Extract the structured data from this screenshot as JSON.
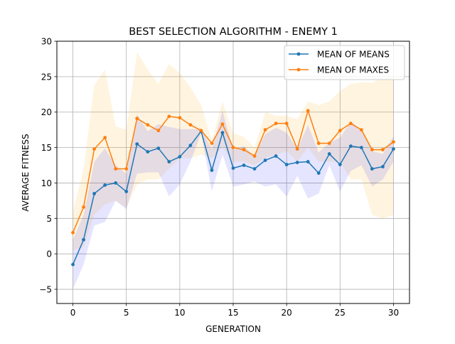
{
  "chart_data": {
    "type": "line",
    "title": "BEST SELECTION ALGORITHM - ENEMY 1",
    "xlabel": "GENERATION",
    "ylabel": "AVERAGE FITNESS",
    "xlim": [
      -1.5,
      31.5
    ],
    "ylim": [
      -7,
      30
    ],
    "xticks": [
      0,
      5,
      10,
      15,
      20,
      25,
      30
    ],
    "yticks": [
      -5,
      0,
      5,
      10,
      15,
      20,
      25,
      30
    ],
    "ytick_labels": [
      "−5",
      "0",
      "5",
      "10",
      "15",
      "20",
      "25",
      "30"
    ],
    "grid": true,
    "legend_position": "top-right",
    "x": [
      0,
      1,
      2,
      3,
      4,
      5,
      6,
      7,
      8,
      9,
      10,
      11,
      12,
      13,
      14,
      15,
      16,
      17,
      18,
      19,
      20,
      21,
      22,
      23,
      24,
      25,
      26,
      27,
      28,
      29,
      30
    ],
    "series": [
      {
        "name": "MEAN OF MEANS",
        "color": "#1f77b4",
        "band_color": "#0000ff",
        "values": [
          -1.5,
          2.0,
          8.5,
          9.7,
          10.0,
          8.8,
          15.5,
          14.4,
          14.9,
          13.0,
          13.7,
          15.3,
          17.3,
          11.8,
          17.1,
          12.1,
          12.5,
          12.0,
          13.2,
          13.8,
          12.6,
          12.9,
          13.0,
          11.4,
          14.1,
          12.6,
          15.2,
          15.0,
          12.0,
          12.3,
          14.8
        ],
        "lower": [
          -5.0,
          -1.5,
          4.0,
          4.5,
          7.5,
          6.3,
          11.3,
          11.5,
          11.5,
          8.1,
          9.8,
          13.0,
          17.0,
          8.8,
          14.0,
          9.5,
          9.8,
          10.2,
          9.5,
          9.8,
          8.1,
          11.0,
          7.8,
          8.5,
          12.5,
          8.8,
          11.7,
          12.5,
          9.5,
          10.5,
          13.0
        ],
        "upper": [
          2.0,
          5.5,
          13.0,
          14.9,
          12.5,
          11.3,
          19.7,
          17.3,
          18.3,
          17.9,
          17.6,
          17.6,
          17.6,
          14.8,
          20.2,
          14.7,
          15.2,
          13.8,
          16.9,
          17.8,
          17.1,
          14.8,
          18.2,
          14.3,
          15.7,
          16.4,
          18.7,
          17.5,
          14.5,
          14.1,
          16.6
        ]
      },
      {
        "name": "MEAN OF MAXES",
        "color": "#ff7f0e",
        "band_color": "#ffa500",
        "values": [
          3.0,
          6.6,
          14.8,
          16.4,
          12.0,
          12.0,
          19.1,
          18.2,
          17.4,
          19.4,
          19.2,
          18.2,
          17.4,
          15.6,
          18.3,
          15.0,
          14.7,
          13.8,
          17.5,
          18.4,
          18.4,
          14.8,
          20.2,
          15.6,
          15.6,
          17.4,
          18.4,
          17.5,
          14.7,
          14.7,
          15.8
        ],
        "lower": [
          0.5,
          1.0,
          5.5,
          7.0,
          7.5,
          6.5,
          9.8,
          10.5,
          10.5,
          12.0,
          13.5,
          13.5,
          14.0,
          13.5,
          15.0,
          13.0,
          13.0,
          12.5,
          13.5,
          14.0,
          14.5,
          13.0,
          15.0,
          13.0,
          13.0,
          13.0,
          10.5,
          10.5,
          5.5,
          5.0,
          5.5
        ],
        "upper": [
          6.0,
          12.0,
          23.8,
          26.0,
          18.0,
          17.5,
          28.5,
          26.0,
          24.0,
          26.8,
          25.5,
          23.5,
          21.0,
          16.0,
          21.5,
          17.0,
          16.5,
          15.0,
          20.0,
          19.5,
          19.5,
          19.0,
          21.5,
          21.0,
          21.5,
          23.0,
          24.0,
          24.2,
          24.2,
          24.8,
          25.0
        ]
      }
    ]
  }
}
